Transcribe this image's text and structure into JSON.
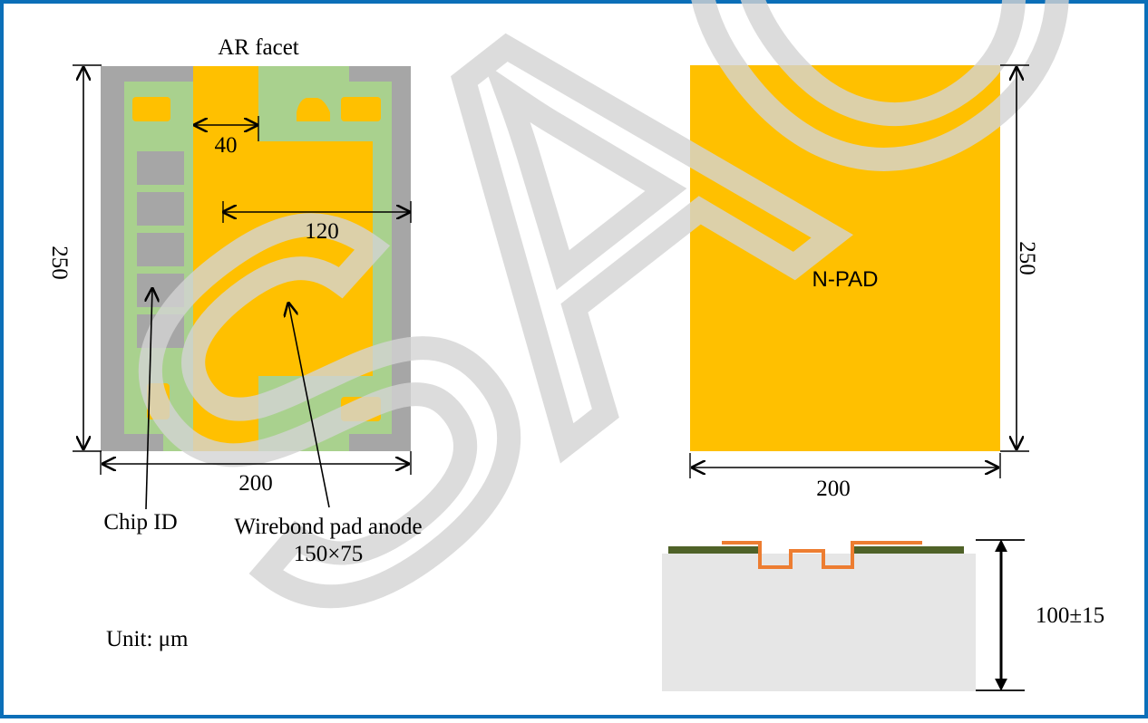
{
  "colors": {
    "frame": "#0b6fb8",
    "gray": "#a6a6a6",
    "green": "#a9d18e",
    "gold": "#ffc000",
    "dark_green": "#4f6228",
    "orange": "#ed7d31",
    "substrate": "#e6e6e6",
    "watermark": "#d4d4d4"
  },
  "watermark_text": "SAC",
  "top_view": {
    "title": "AR facet",
    "dim_40": "40",
    "dim_120": "120",
    "dim_250": "250",
    "dim_200": "200",
    "label_chip_id": "Chip ID",
    "label_pad_line1": "Wirebond pad anode",
    "label_pad_line2": "150×75"
  },
  "bottom_view": {
    "label": "N-PAD",
    "dim_250": "250",
    "dim_200": "200"
  },
  "cross_section": {
    "thickness": "100±15"
  },
  "unit_label": "Unit: μm"
}
